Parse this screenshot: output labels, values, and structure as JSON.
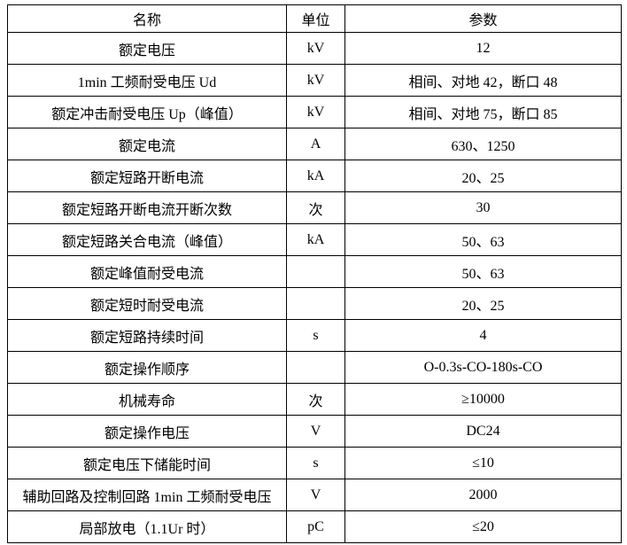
{
  "table": {
    "headers": [
      "名称",
      "单位",
      "参数"
    ],
    "rows": [
      {
        "name": "额定电压",
        "unit": "kV",
        "value": "12"
      },
      {
        "name": "1min 工频耐受电压 Ud",
        "unit": "kV",
        "value": "相间、对地 42，断口 48"
      },
      {
        "name": "额定冲击耐受电压 Up（峰值）",
        "unit": "kV",
        "value": "相间、对地 75，断口 85"
      },
      {
        "name": "额定电流",
        "unit": "A",
        "value": "630、1250"
      },
      {
        "name": "额定短路开断电流",
        "unit": "kA",
        "value": "20、25"
      },
      {
        "name": "额定短路开断电流开断次数",
        "unit": "次",
        "value": "30"
      },
      {
        "name": "额定短路关合电流（峰值）",
        "unit": "kA",
        "value": "50、63"
      },
      {
        "name": "额定峰值耐受电流",
        "unit": "",
        "value": "50、63"
      },
      {
        "name": "额定短时耐受电流",
        "unit": "",
        "value": "20、25"
      },
      {
        "name": "额定短路持续时间",
        "unit": "s",
        "value": "4"
      },
      {
        "name": "额定操作顺序",
        "unit": "",
        "value": "O-0.3s-CO-180s-CO"
      },
      {
        "name": "机械寿命",
        "unit": "次",
        "value": "≥10000"
      },
      {
        "name": "额定操作电压",
        "unit": "V",
        "value": "DC24"
      },
      {
        "name": "额定电压下储能时间",
        "unit": "s",
        "value": "≤10"
      },
      {
        "name": "辅助回路及控制回路 1min 工频耐受电压",
        "unit": "V",
        "value": "2000"
      },
      {
        "name": "局部放电（1.1Ur 时）",
        "unit": "pC",
        "value": "≤20"
      }
    ]
  }
}
